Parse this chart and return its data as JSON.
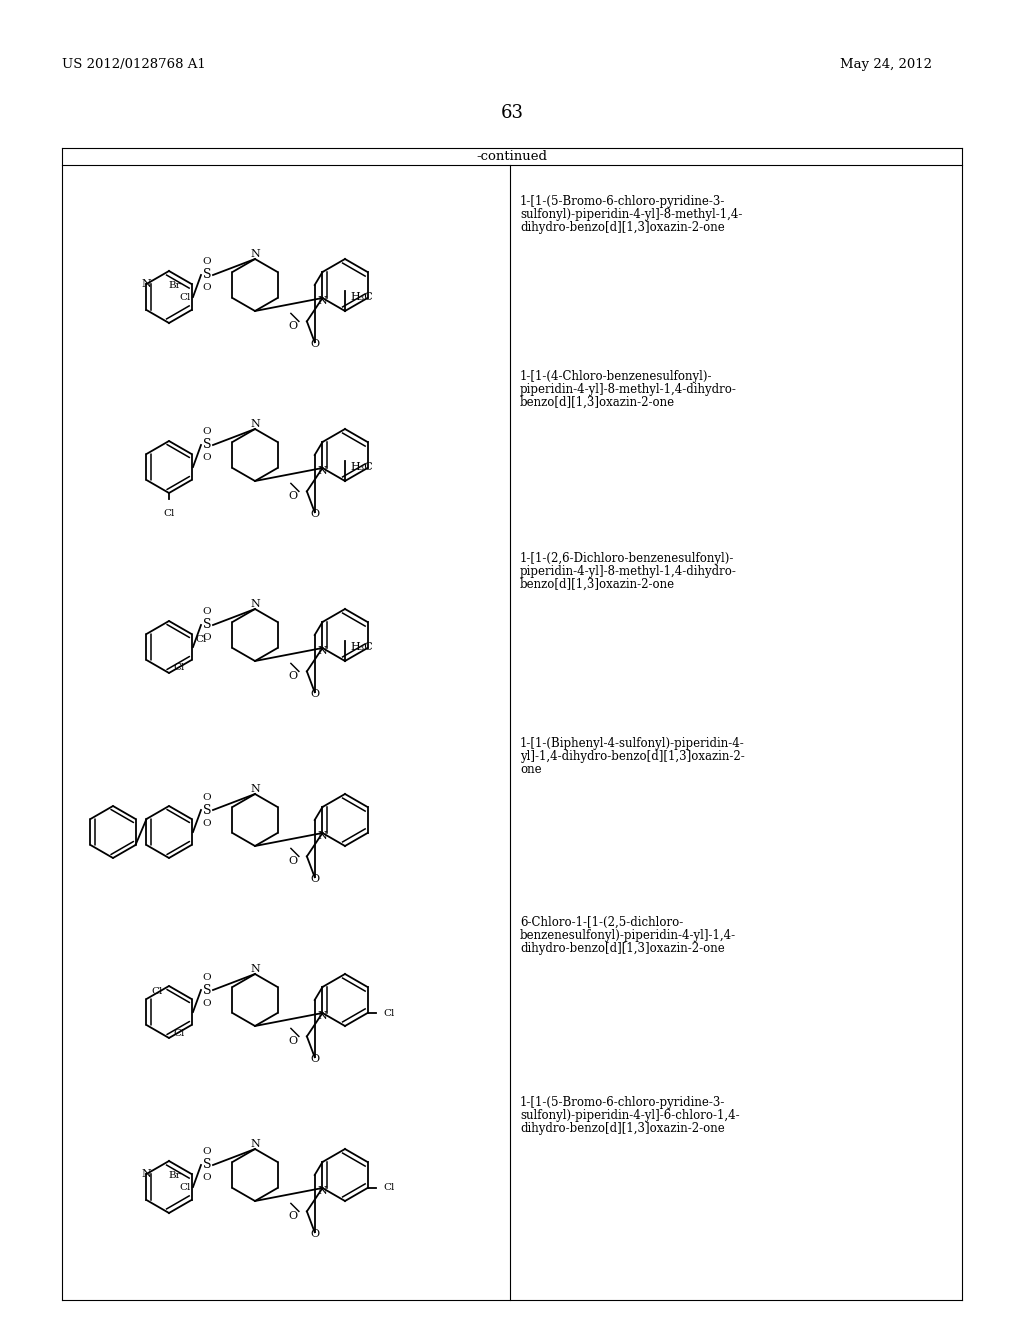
{
  "page_number": "63",
  "patent_number": "US 2012/0128768 A1",
  "date": "May 24, 2012",
  "continued_label": "-continued",
  "background_color": "#ffffff",
  "text_color": "#000000",
  "name1": "1-[1-(5-Bromo-6-chloro-pyridine-3-\nsulfonyl)-piperidin-4-yl]-8-methyl-1,4-\ndihydro-benzo[d][1,3]oxazin-2-one",
  "name2": "1-[1-(4-Chloro-benzenesulfonyl)-\npiperidin-4-yl]-8-methyl-1,4-dihydro-\nbenzo[d][1,3]oxazin-2-one",
  "name3": "1-[1-(2,6-Dichloro-benzenesulfonyl)-\npiperidin-4-yl]-8-methyl-1,4-dihydro-\nbenzo[d][1,3]oxazin-2-one",
  "name4": "1-[1-(Biphenyl-4-sulfonyl)-piperidin-4-\nyl]-1,4-dihydro-benzo[d][1,3]oxazin-2-\none",
  "name5": "6-Chloro-1-[1-(2,5-dichloro-\nbenzenesulfonyl)-piperidin-4-yl]-1,4-\ndihydro-benzo[d][1,3]oxazin-2-one",
  "name6": "1-[1-(5-Bromo-6-chloro-pyridine-3-\nsulfonyl)-piperidin-4-yl]-6-chloro-1,4-\ndihydro-benzo[d][1,3]oxazin-2-one",
  "struct_y_centers": [
    285,
    455,
    635,
    820,
    1000,
    1175
  ]
}
